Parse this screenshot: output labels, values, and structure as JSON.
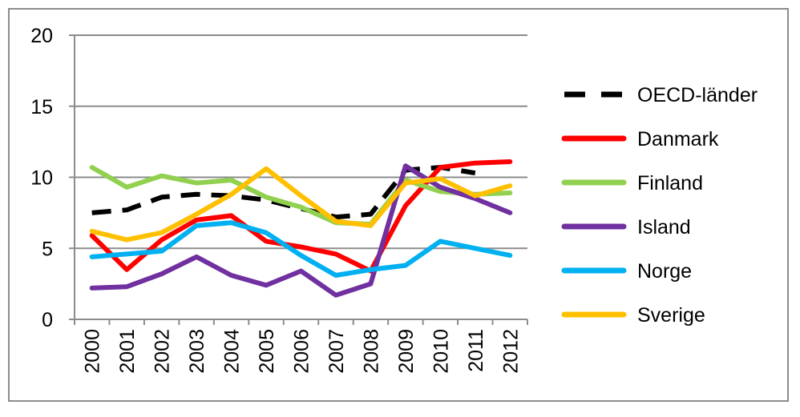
{
  "chart_data": {
    "type": "line",
    "title": "",
    "xlabel": "",
    "ylabel": "",
    "ylim": [
      0,
      20
    ],
    "yticks": [
      0,
      5,
      10,
      15,
      20
    ],
    "grid": true,
    "legend_position": "right",
    "categories": [
      "2000",
      "2001",
      "2002",
      "2003",
      "2004",
      "2005",
      "2006",
      "2007",
      "2008",
      "2009",
      "2010",
      "2011",
      "2012"
    ],
    "series": [
      {
        "name": "OECD-länder",
        "color": "#000000",
        "dashed": true,
        "values": [
          7.5,
          7.7,
          8.6,
          8.8,
          8.7,
          8.4,
          7.8,
          7.2,
          7.4,
          10.5,
          10.7,
          10.3,
          null
        ]
      },
      {
        "name": "Danmark",
        "color": "#ff0000",
        "dashed": false,
        "values": [
          5.9,
          3.5,
          5.6,
          7.0,
          7.3,
          5.5,
          5.1,
          4.6,
          3.4,
          8.0,
          10.7,
          11.0,
          11.1
        ]
      },
      {
        "name": "Finland",
        "color": "#92d050",
        "dashed": false,
        "values": [
          10.7,
          9.3,
          10.1,
          9.6,
          9.8,
          8.6,
          7.9,
          6.8,
          6.7,
          9.8,
          9.0,
          8.8,
          8.9
        ]
      },
      {
        "name": "Island",
        "color": "#7030a0",
        "dashed": false,
        "values": [
          2.2,
          2.3,
          3.2,
          4.4,
          3.1,
          2.4,
          3.4,
          1.7,
          2.5,
          10.8,
          9.3,
          8.5,
          7.5
        ]
      },
      {
        "name": "Norge",
        "color": "#00b0f0",
        "dashed": false,
        "values": [
          4.4,
          4.6,
          4.8,
          6.6,
          6.8,
          6.1,
          4.5,
          3.1,
          3.5,
          3.8,
          5.5,
          5.0,
          4.5
        ]
      },
      {
        "name": "Sverige",
        "color": "#ffc000",
        "dashed": false,
        "values": [
          6.2,
          5.6,
          6.1,
          7.4,
          8.8,
          10.6,
          8.7,
          6.9,
          6.6,
          9.6,
          9.9,
          8.7,
          9.4
        ]
      }
    ]
  }
}
